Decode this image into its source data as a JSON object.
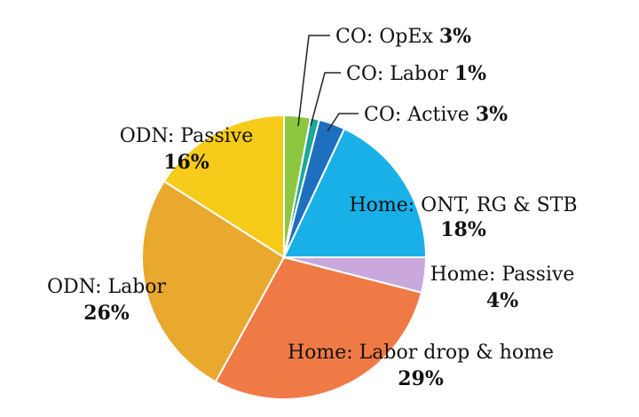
{
  "chart_data": {
    "type": "pie",
    "title": "",
    "start_angle_deg": 0,
    "direction": "clockwise",
    "slices": [
      {
        "name": "CO: OpEx",
        "value": 3,
        "value_label": "3%",
        "color": "#8dc63f"
      },
      {
        "name": "CO: Labor",
        "value": 1,
        "value_label": "1%",
        "color": "#1aa89a"
      },
      {
        "name": "CO: Active",
        "value": 3,
        "value_label": "3%",
        "color": "#1f6fbf"
      },
      {
        "name": "Home: ONT, RG & STB",
        "value": 18,
        "value_label": "18%",
        "color": "#19b0e8"
      },
      {
        "name": "Home: Passive",
        "value": 4,
        "value_label": "4%",
        "color": "#c9a8de"
      },
      {
        "name": "Home: Labor drop & home",
        "value": 29,
        "value_label": "29%",
        "color": "#f07a45"
      },
      {
        "name": "ODN: Labor",
        "value": 26,
        "value_label": "26%",
        "color": "#e9a82e"
      },
      {
        "name": "ODN: Passive",
        "value": 16,
        "value_label": "16%",
        "color": "#f6cb1a"
      }
    ]
  }
}
